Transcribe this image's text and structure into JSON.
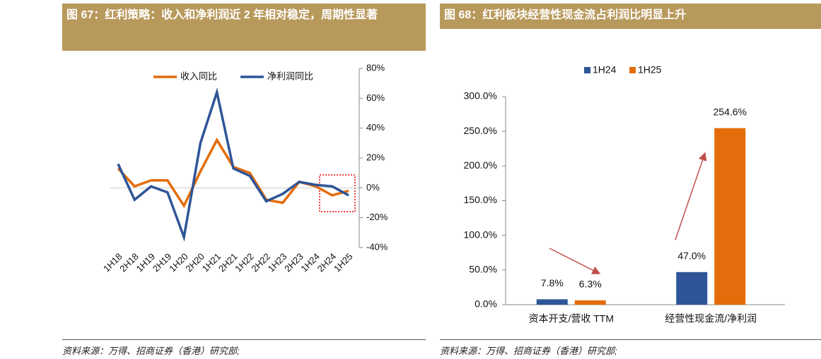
{
  "chart_data": [
    {
      "type": "line",
      "title": "图 67：红利策略：收入和净利润近 2 年相对稳定，周期性显著",
      "source": "资料来源：万得、招商证券（香港）研究部;",
      "categories": [
        "1H18",
        "2H18",
        "1H19",
        "2H19",
        "1H20",
        "2H20",
        "1H21",
        "2H21",
        "1H22",
        "2H22",
        "1H23",
        "2H23",
        "1H24",
        "2H24",
        "1H25"
      ],
      "series": [
        {
          "name": "收入同比",
          "color": "#e46c0a",
          "values": [
            13,
            1,
            5,
            5,
            -12,
            11,
            32,
            14,
            10,
            -8,
            -10,
            4,
            1,
            -5,
            -2
          ]
        },
        {
          "name": "净利润同比",
          "color": "#2e5597",
          "values": [
            16,
            -8,
            1,
            -3,
            -33,
            30,
            64,
            13,
            8,
            -9,
            -4,
            4,
            2,
            1,
            -5
          ]
        }
      ],
      "ylim": [
        -40,
        80
      ],
      "yticks": [
        {
          "value": 80,
          "label": "80%"
        },
        {
          "value": 60,
          "label": "60%"
        },
        {
          "value": 40,
          "label": "40%"
        },
        {
          "value": 20,
          "label": "20%"
        },
        {
          "value": 0,
          "label": "0%"
        },
        {
          "value": -20,
          "label": "-20%"
        },
        {
          "value": -40,
          "label": "-40%"
        }
      ],
      "legend": "top"
    },
    {
      "type": "bar",
      "title": "图 68：红利板块经营性现金流占利润比明显上升",
      "source": "资料来源：万得、招商证券（香港）研究部;",
      "categories": [
        "资本开支/营收 TTM",
        "经营性现金流/净利润"
      ],
      "series": [
        {
          "name": "1H24",
          "color": "#2e5597",
          "values": [
            7.8,
            47.0
          ],
          "value_labels": [
            "7.8%",
            "47.0%"
          ]
        },
        {
          "name": "1H25",
          "color": "#e46c0a",
          "values": [
            6.3,
            254.6
          ],
          "value_labels": [
            "6.3%",
            "254.6%"
          ]
        }
      ],
      "ylim": [
        0,
        300
      ],
      "yticks": [
        {
          "value": 0,
          "label": "0.0%"
        },
        {
          "value": 50,
          "label": "50.0%"
        },
        {
          "value": 100,
          "label": "100.0%"
        },
        {
          "value": 150,
          "label": "150.0%"
        },
        {
          "value": 200,
          "label": "200.0%"
        },
        {
          "value": 250,
          "label": "250.0%"
        },
        {
          "value": 300,
          "label": "300.0%"
        }
      ],
      "legend": "top"
    }
  ]
}
